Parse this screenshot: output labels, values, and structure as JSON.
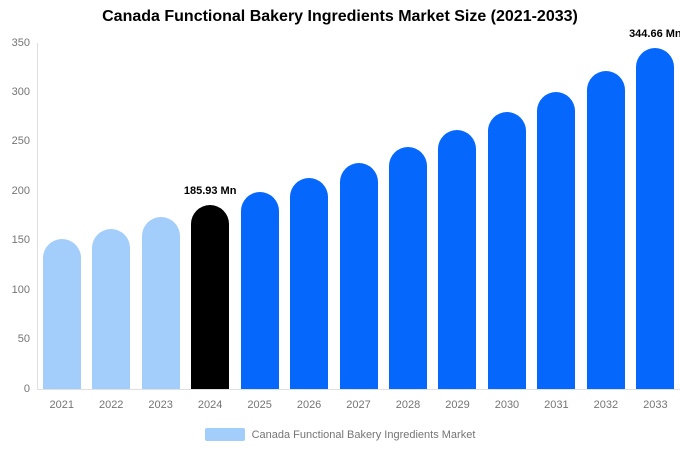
{
  "title": "Canada Functional Bakery Ingredients Market Size (2021-2033)",
  "colors": {
    "light_blue": "#a3cdfa",
    "bright_blue": "#0667fd",
    "highlight_black": "#000000",
    "axis_text": "#757575",
    "axis_line": "#e0e0e0",
    "title_text": "#000000",
    "background": "#ffffff"
  },
  "legend": {
    "label": "Canada Functional Bakery Ingredients Market",
    "swatch_color": "#a3cdfa"
  },
  "chart_data": {
    "type": "bar",
    "title": "Canada Functional Bakery Ingredients Market Size (2021-2033)",
    "xlabel": "",
    "ylabel": "",
    "ylim": [
      0,
      350
    ],
    "y_ticks": [
      0,
      50,
      100,
      150,
      200,
      250,
      300,
      350
    ],
    "grid": false,
    "legend_position": "bottom",
    "categories": [
      "2021",
      "2022",
      "2023",
      "2024",
      "2025",
      "2026",
      "2027",
      "2028",
      "2029",
      "2030",
      "2031",
      "2032",
      "2033"
    ],
    "values": [
      151.38,
      162.12,
      173.61,
      185.93,
      199.12,
      213.25,
      228.38,
      244.58,
      261.93,
      280.51,
      300.41,
      321.72,
      344.66
    ],
    "bar_color_keys": [
      "light_blue",
      "light_blue",
      "light_blue",
      "highlight_black",
      "bright_blue",
      "bright_blue",
      "bright_blue",
      "bright_blue",
      "bright_blue",
      "bright_blue",
      "bright_blue",
      "bright_blue",
      "bright_blue"
    ],
    "data_labels": [
      {
        "category": "2024",
        "text": "185.93 Mn"
      },
      {
        "category": "2033",
        "text": "344.66 Mn"
      }
    ]
  }
}
